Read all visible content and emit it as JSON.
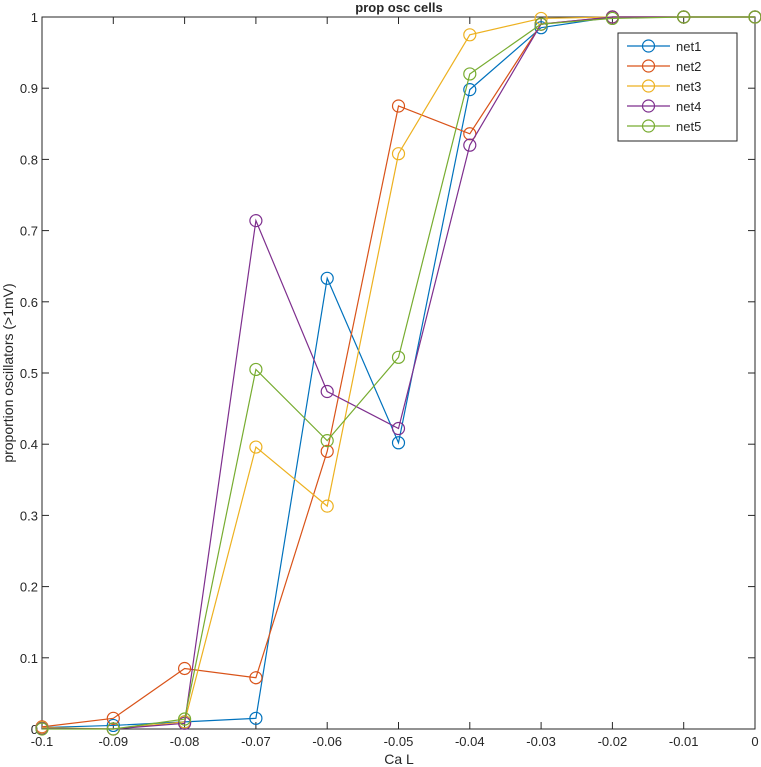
{
  "chart_data": {
    "type": "line",
    "title": "prop osc cells",
    "xlabel": "Ca L",
    "ylabel": "proportion oscillators (>1mV)",
    "xlim": [
      -0.1,
      0
    ],
    "ylim": [
      0,
      1
    ],
    "grid": false,
    "legend_position": "top-right",
    "marker": "open-circle",
    "x": [
      -0.1,
      -0.09,
      -0.08,
      -0.07,
      -0.06,
      -0.05,
      -0.04,
      -0.03,
      -0.02,
      -0.01,
      0
    ],
    "xticks": [
      "-0.1",
      "-0.09",
      "-0.08",
      "-0.07",
      "-0.06",
      "-0.05",
      "-0.04",
      "-0.03",
      "-0.02",
      "-0.01",
      "0"
    ],
    "yticks": [
      "0",
      "0.1",
      "0.2",
      "0.3",
      "0.4",
      "0.5",
      "0.6",
      "0.7",
      "0.8",
      "0.9",
      "1"
    ],
    "series": [
      {
        "name": "net1",
        "color": "#0072BD",
        "values": [
          0.002,
          0.005,
          0.01,
          0.015,
          0.633,
          0.402,
          0.898,
          0.985,
          1.0,
          1.0,
          1.0
        ]
      },
      {
        "name": "net2",
        "color": "#D95319",
        "values": [
          0.003,
          0.015,
          0.085,
          0.072,
          0.39,
          0.875,
          0.836,
          0.99,
          1.0,
          1.0,
          1.0
        ]
      },
      {
        "name": "net3",
        "color": "#EDB120",
        "values": [
          0.002,
          0.0,
          0.01,
          0.396,
          0.313,
          0.808,
          0.975,
          0.998,
          1.0,
          1.0,
          1.0
        ]
      },
      {
        "name": "net4",
        "color": "#7E2F8E",
        "values": [
          0.001,
          0.0,
          0.008,
          0.714,
          0.474,
          0.422,
          0.82,
          0.99,
          1.0,
          1.0,
          1.0
        ]
      },
      {
        "name": "net5",
        "color": "#77AC30",
        "values": [
          0.0,
          0.0,
          0.014,
          0.505,
          0.405,
          0.522,
          0.92,
          0.99,
          0.998,
          1.0,
          1.0
        ]
      }
    ]
  }
}
